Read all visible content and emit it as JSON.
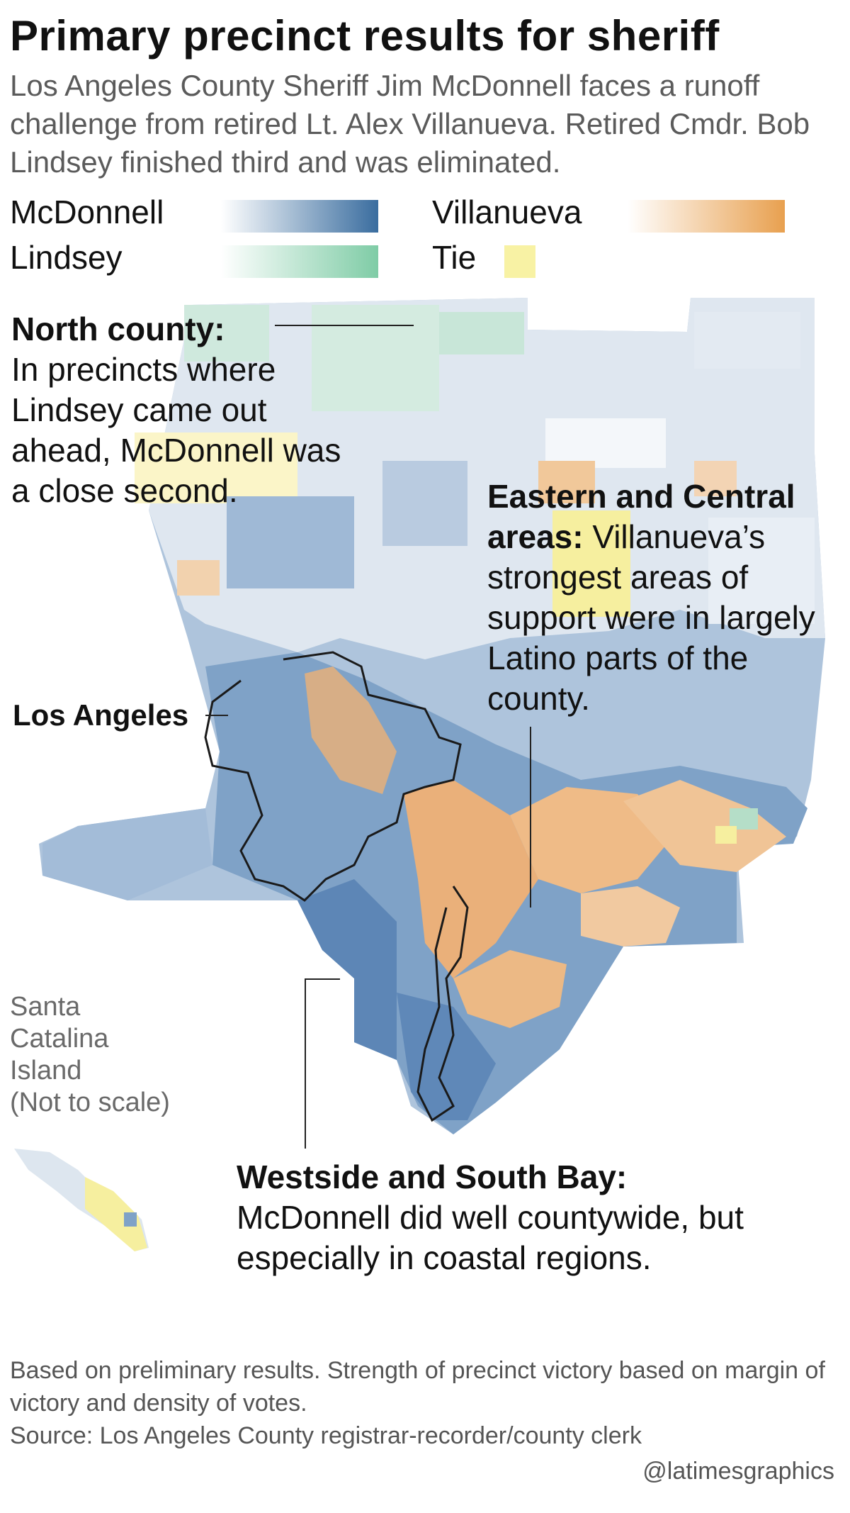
{
  "header": {
    "title": "Primary precinct results for sheriff",
    "subtitle": "Los Angeles County Sheriff Jim McDonnell faces a runoff challenge from retired Lt. Alex Villanueva. Retired Cmdr. Bob Lindsey finished third and was eliminated."
  },
  "legend": {
    "mcdonnell": {
      "label": "McDonnell",
      "color": "#3a6d9f"
    },
    "villanueva": {
      "label": "Villanueva",
      "color": "#e8a04f"
    },
    "lindsey": {
      "label": "Lindsey",
      "color": "#7fcca6"
    },
    "tie": {
      "label": "Tie",
      "color": "#f8f2a4"
    }
  },
  "annotations": {
    "north": {
      "heading": "North county:",
      "body": "In precincts where Lindsey came out ahead, McDonnell was a close second."
    },
    "east": {
      "heading": "Eastern and Central areas:",
      "body": "Villanueva’s strongest areas of support were in largely Latino parts of the county."
    },
    "west": {
      "heading": "Westside and South Bay:",
      "body": "McDonnell did well countywide, but especially in coastal regions."
    }
  },
  "map_labels": {
    "los_angeles": "Los Angeles",
    "catalina_name": [
      "Santa",
      "Catalina",
      "Island"
    ],
    "catalina_note": "(Not to scale)"
  },
  "footer": {
    "note": "Based on preliminary results. Strength of precinct victory based on margin of victory and density of votes.",
    "source": "Source: Los Angeles County registrar-recorder/county clerk",
    "credit": "@latimesgraphics"
  }
}
